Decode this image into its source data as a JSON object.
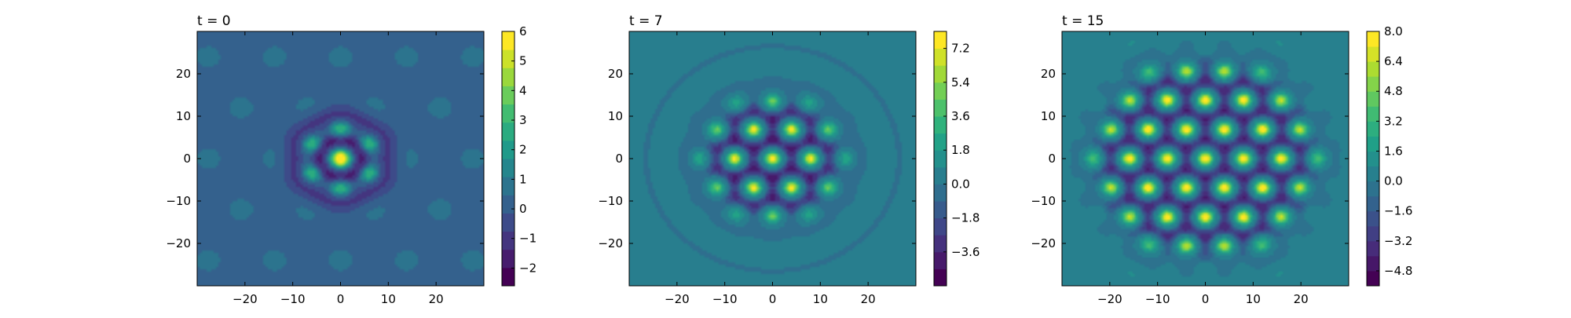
{
  "chart_data": [
    {
      "type": "heatmap",
      "title": "t = 0",
      "xlim": [
        -30,
        30
      ],
      "ylim": [
        -30,
        30
      ],
      "xticks": [
        -20,
        -10,
        0,
        10,
        20
      ],
      "yticks": [
        -20,
        -10,
        0,
        10,
        20
      ],
      "xtick_labels": [
        "−20",
        "−10",
        "0",
        "10",
        "20"
      ],
      "ytick_labels": [
        "−20",
        "−10",
        "0",
        "10",
        "20"
      ],
      "colorbar": {
        "min": -2.6,
        "max": 6,
        "ticks": [
          -2,
          -1,
          0,
          1,
          2,
          3,
          4,
          5,
          6
        ],
        "tick_labels": [
          "−2",
          "−1",
          "0",
          "1",
          "2",
          "3",
          "4",
          "5",
          "6"
        ],
        "levels": 14
      },
      "pattern": {
        "background": 0.25,
        "lattice_spacing": 12,
        "center_peak": 6,
        "peaks": [
          {
            "x": 0,
            "y": 0,
            "value": 6
          },
          {
            "x": 0,
            "y": 7,
            "value": 3.5
          },
          {
            "x": 0,
            "y": -7,
            "value": 3.5
          },
          {
            "x": 6,
            "y": 3.5,
            "value": 3.5
          },
          {
            "x": -6,
            "y": 3.5,
            "value": 3.5
          },
          {
            "x": 6,
            "y": -3.5,
            "value": 3.5
          },
          {
            "x": -6,
            "y": -3.5,
            "value": 3.5
          }
        ]
      }
    },
    {
      "type": "heatmap",
      "title": "t = 7",
      "xlim": [
        -30,
        30
      ],
      "ylim": [
        -30,
        30
      ],
      "xticks": [
        -20,
        -10,
        0,
        10,
        20
      ],
      "yticks": [
        -20,
        -10,
        0,
        10,
        20
      ],
      "xtick_labels": [
        "−20",
        "−10",
        "0",
        "10",
        "20"
      ],
      "ytick_labels": [
        "−20",
        "−10",
        "0",
        "10",
        "20"
      ],
      "colorbar": {
        "min": -5.4,
        "max": 8.1,
        "ticks": [
          -3.6,
          -1.8,
          0.0,
          1.8,
          3.6,
          5.4,
          7.2
        ],
        "tick_labels": [
          "−3.6",
          "−1.8",
          "0.0",
          "1.8",
          "3.6",
          "5.4",
          "7.2"
        ],
        "levels": 15
      },
      "pattern": {
        "background": 0.3,
        "peak_value": 7.2,
        "cluster_radius": 14,
        "lattice_spacing": 6.9
      }
    },
    {
      "type": "heatmap",
      "title": "t = 15",
      "xlim": [
        -30,
        30
      ],
      "ylim": [
        -30,
        30
      ],
      "xticks": [
        -20,
        -10,
        0,
        10,
        20
      ],
      "yticks": [
        -20,
        -10,
        0,
        10,
        20
      ],
      "xtick_labels": [
        "−20",
        "−10",
        "0",
        "10",
        "20"
      ],
      "ytick_labels": [
        "−20",
        "−10",
        "0",
        "10",
        "20"
      ],
      "colorbar": {
        "min": -5.6,
        "max": 8.0,
        "ticks": [
          -4.8,
          -3.2,
          -1.6,
          0.0,
          1.6,
          3.2,
          4.8,
          6.4,
          8.0
        ],
        "tick_labels": [
          "−4.8",
          "−3.2",
          "−1.6",
          "0.0",
          "1.6",
          "3.2",
          "4.8",
          "6.4",
          "8.0"
        ],
        "levels": 17
      },
      "pattern": {
        "background": 0.4,
        "peak_value": 7.6,
        "cluster_radius": 23,
        "lattice_spacing": 6.9
      }
    }
  ],
  "colors": {
    "viridis": [
      "#440154",
      "#482878",
      "#3e4989",
      "#31688e",
      "#26828e",
      "#1f9e89",
      "#35b779",
      "#6ece58",
      "#b5de2b",
      "#fde725"
    ],
    "frame": "#000000"
  }
}
